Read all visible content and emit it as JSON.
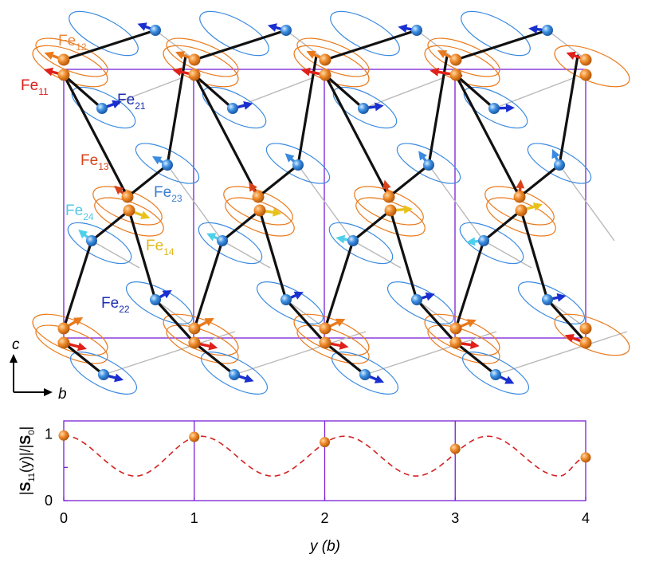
{
  "colors": {
    "cell_outline": "#7a1fd6",
    "fe_orange": "#ea7a1c",
    "fe_red": "#e0201a",
    "fe_yellow": "#e8c21c",
    "fe_blue_dark": "#1a2fd0",
    "fe_blue_light": "#3a8ae0",
    "fe_cyan": "#4fd0ea",
    "bond": "#111111",
    "curve": "#d42020"
  },
  "structure": {
    "labels": [
      {
        "id": "fe12",
        "base": "Fe",
        "sub": "12",
        "color": "#e8883a"
      },
      {
        "id": "fe11",
        "base": "Fe",
        "sub": "11",
        "color": "#d8201a"
      },
      {
        "id": "fe21",
        "base": "Fe",
        "sub": "21",
        "color": "#1c2fb0"
      },
      {
        "id": "fe13",
        "base": "Fe",
        "sub": "13",
        "color": "#d8421a"
      },
      {
        "id": "fe23",
        "base": "Fe",
        "sub": "23",
        "color": "#3a7fd0"
      },
      {
        "id": "fe24",
        "base": "Fe",
        "sub": "24",
        "color": "#52c8e6"
      },
      {
        "id": "fe14",
        "base": "Fe",
        "sub": "14",
        "color": "#e0b81c"
      },
      {
        "id": "fe22",
        "base": "Fe",
        "sub": "22",
        "color": "#1c2fb0"
      }
    ],
    "axes": {
      "vertical": "c",
      "horizontal": "b"
    }
  },
  "chart_data": {
    "type": "scatter",
    "ylabel_parts": [
      "|",
      "S",
      "11",
      "(y)|/|",
      "S",
      "0",
      "|"
    ],
    "xlabel": "y (b)",
    "x_ticks": [
      "0",
      "1",
      "2",
      "3",
      "4"
    ],
    "y_ticks": [
      "0",
      "1"
    ],
    "xlim": [
      0,
      4
    ],
    "ylim": [
      0,
      1.2
    ],
    "points": [
      {
        "x": 0,
        "y": 0.98
      },
      {
        "x": 1,
        "y": 0.96
      },
      {
        "x": 2,
        "y": 0.88
      },
      {
        "x": 3,
        "y": 0.78
      },
      {
        "x": 4,
        "y": 0.65
      }
    ],
    "dashed_curve": {
      "peaks": [
        [
          0.0,
          0.98
        ],
        [
          1.05,
          0.97
        ],
        [
          2.15,
          0.97
        ],
        [
          3.25,
          0.97
        ]
      ],
      "troughs": [
        [
          0.55,
          0.37
        ],
        [
          1.6,
          0.37
        ],
        [
          2.7,
          0.37
        ],
        [
          3.8,
          0.37
        ]
      ],
      "end": [
        4.0,
        0.65
      ]
    },
    "vertical_gridlines": [
      1,
      2,
      3
    ]
  }
}
